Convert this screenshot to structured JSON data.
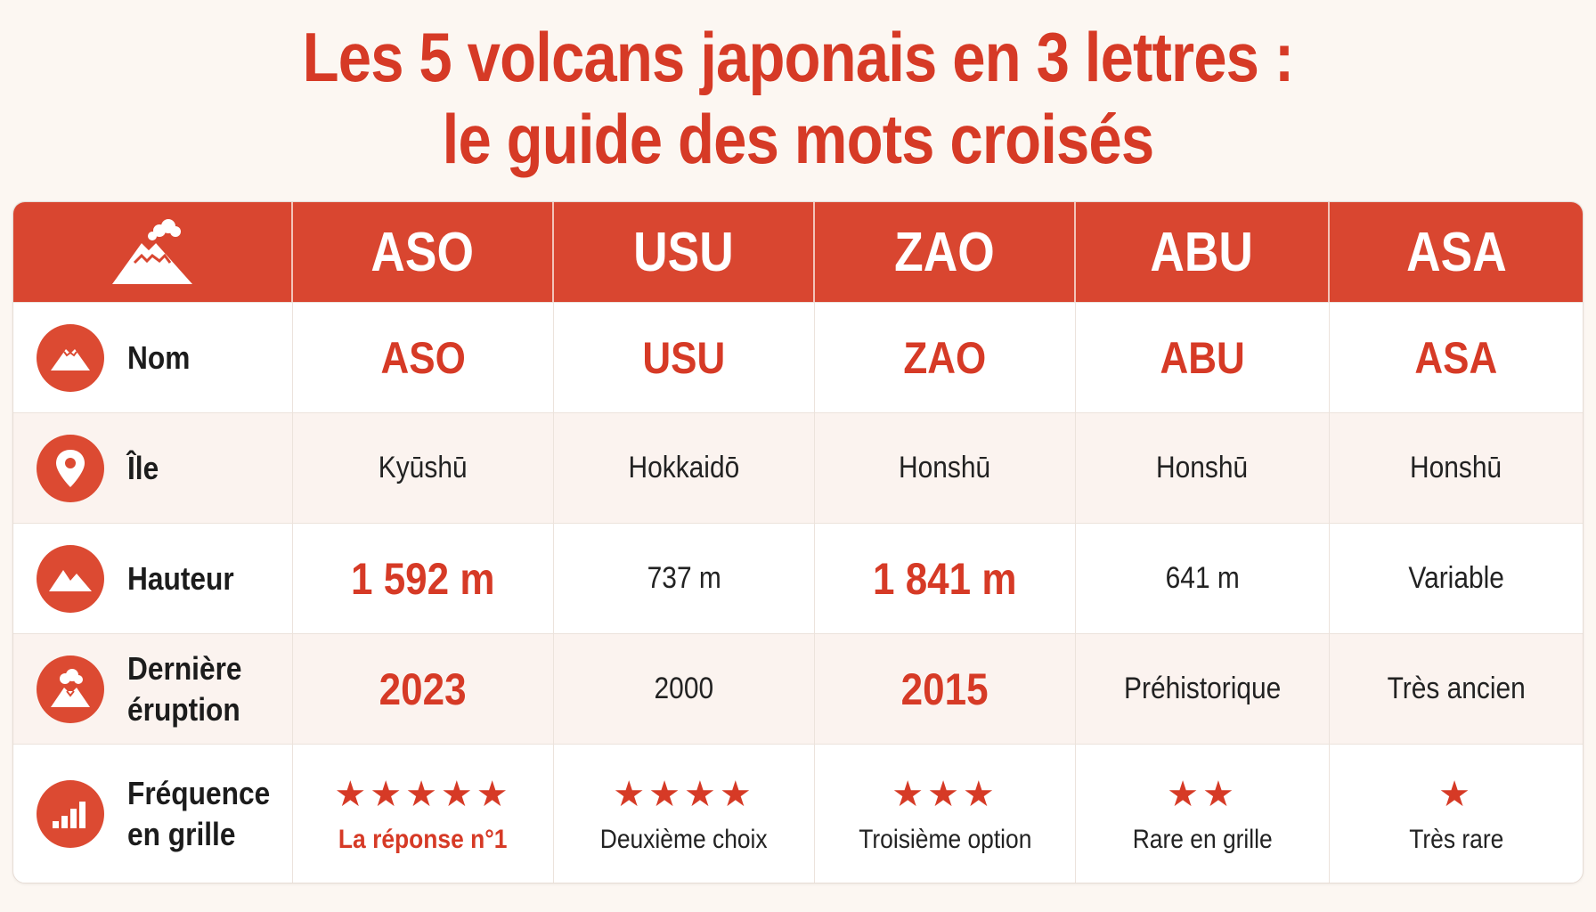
{
  "title": {
    "line1": "Les 5 volcans japonais en 3 lettres :",
    "line2": "le guide des mots croisés"
  },
  "header": {
    "icon": "volcano-icon",
    "columns": [
      "ASO",
      "USU",
      "ZAO",
      "ABU",
      "ASA"
    ]
  },
  "rows": [
    {
      "label": "Nom",
      "icon": "mountain-snow-icon",
      "values": [
        "ASO",
        "USU",
        "ZAO",
        "ABU",
        "ASA"
      ],
      "highlight": [
        true,
        true,
        true,
        true,
        true
      ]
    },
    {
      "label": "Île",
      "icon": "location-pin-icon",
      "values": [
        "Kyūshū",
        "Hokkaidō",
        "Honshū",
        "Honshū",
        "Honshū"
      ],
      "highlight": [
        false,
        false,
        false,
        false,
        false
      ]
    },
    {
      "label": "Hauteur",
      "icon": "mountains-icon",
      "values": [
        "1 592 m",
        "737 m",
        "1 841 m",
        "641 m",
        "Variable"
      ],
      "highlight": [
        true,
        false,
        true,
        false,
        false
      ]
    },
    {
      "label": "Dernière\néruption",
      "icon": "eruption-icon",
      "values": [
        "2023",
        "2000",
        "2015",
        "Préhistorique",
        "Très ancien"
      ],
      "highlight": [
        true,
        false,
        true,
        false,
        false
      ]
    },
    {
      "label": "Fréquence\nen grille",
      "icon": "bar-chart-icon",
      "stars": [
        5,
        4,
        3,
        2,
        1
      ],
      "values": [
        "La réponse n°1",
        "Deuxième choix",
        "Troisième option",
        "Rare en grille",
        "Très rare"
      ],
      "highlight": [
        true,
        false,
        false,
        false,
        false
      ]
    }
  ],
  "colors": {
    "accent": "#d94630",
    "title": "#d63a26",
    "background": "#fcf7f2"
  }
}
